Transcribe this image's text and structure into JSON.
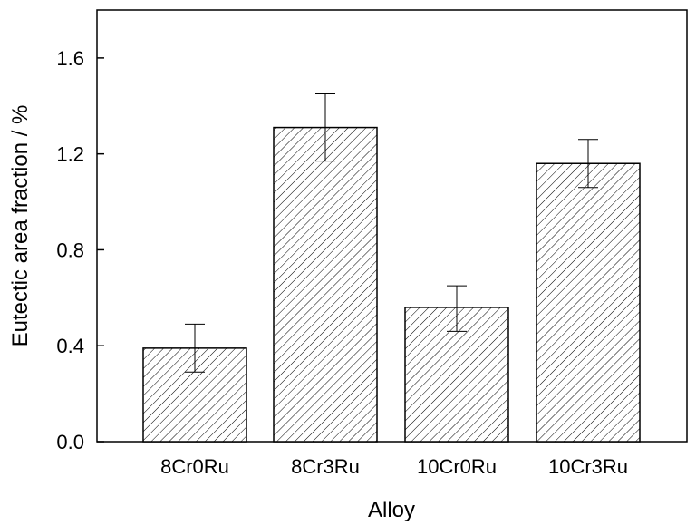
{
  "chart_data": {
    "type": "bar",
    "categories": [
      "8Cr0Ru",
      "8Cr3Ru",
      "10Cr0Ru",
      "10Cr3Ru"
    ],
    "values": [
      0.39,
      1.31,
      0.56,
      1.16
    ],
    "error_low": [
      0.29,
      1.17,
      0.46,
      1.06
    ],
    "error_high": [
      0.49,
      1.45,
      0.65,
      1.26
    ],
    "xlabel": "Alloy",
    "ylabel": "Eutectic area fraction / %",
    "ylim": [
      0,
      1.8
    ],
    "yticks": [
      0.0,
      0.4,
      0.8,
      1.2,
      1.6
    ],
    "ytick_labels": [
      "0.0",
      "0.4",
      "0.8",
      "1.2",
      "1.6"
    ],
    "bar_fill": "hatched",
    "grid": false,
    "legend": "none"
  }
}
